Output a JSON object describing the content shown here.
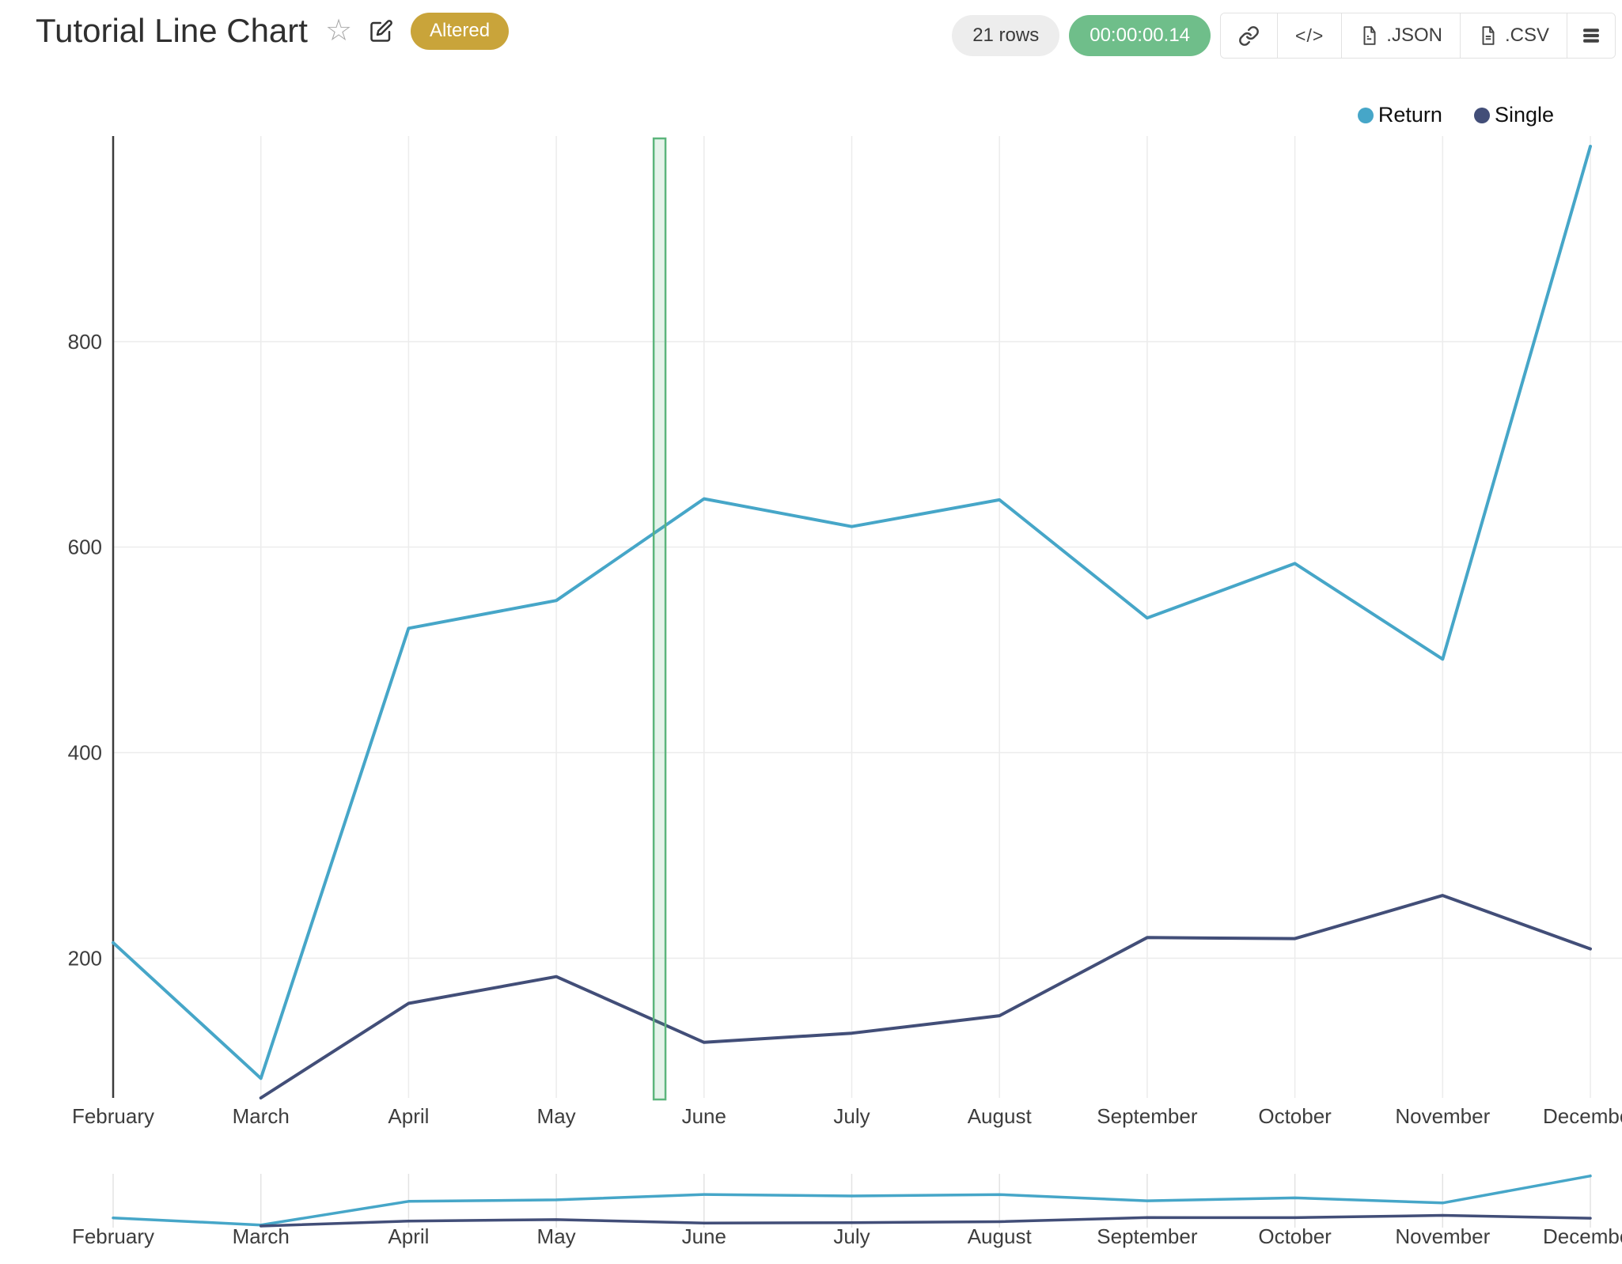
{
  "header": {
    "title": "Tutorial Line Chart",
    "status_badge": "Altered",
    "rows_count": "21 rows",
    "execution_time": "00:00:00.14",
    "export_buttons": {
      "embed": "</>",
      "json": ".JSON",
      "csv": ".CSV"
    },
    "icons": [
      "star-outline-icon",
      "edit-icon",
      "link-icon",
      "code-icon",
      "json-file-icon",
      "csv-file-icon",
      "menu-icon"
    ]
  },
  "colors": {
    "badge_gold": "#c9a43a",
    "badge_green": "#6fbe8a",
    "badge_gray_bg": "#ededed",
    "grid": "#ececec",
    "axis": "#3c3c3c",
    "tick_label": "#3d3d3d",
    "selection_border": "#5cb57c",
    "selection_fill": "rgba(92,181,124,0.16)"
  },
  "chart_data": {
    "type": "line",
    "title": "Tutorial Line Chart",
    "categories": [
      "February",
      "March",
      "April",
      "May",
      "June",
      "July",
      "August",
      "September",
      "October",
      "November",
      "December"
    ],
    "series": [
      {
        "name": "Return",
        "color": "#46a6c8",
        "values": [
          215,
          83,
          521,
          548,
          647,
          620,
          646,
          531,
          584,
          491,
          990
        ]
      },
      {
        "name": "Single",
        "color": "#424e78",
        "values": [
          null,
          64,
          156,
          182,
          118,
          127,
          144,
          220,
          219,
          261,
          209
        ]
      }
    ],
    "xlabel": "",
    "ylabel": "",
    "yticks": [
      200,
      400,
      600,
      800
    ],
    "ylim": [
      64,
      1000
    ],
    "grid": true,
    "legend": {
      "position": "top-right",
      "entries": [
        "Return",
        "Single"
      ]
    },
    "selection_band": {
      "from_category_fraction": 3.659,
      "to_category_fraction": 3.739
    },
    "range_slider": {
      "visible": true
    }
  }
}
